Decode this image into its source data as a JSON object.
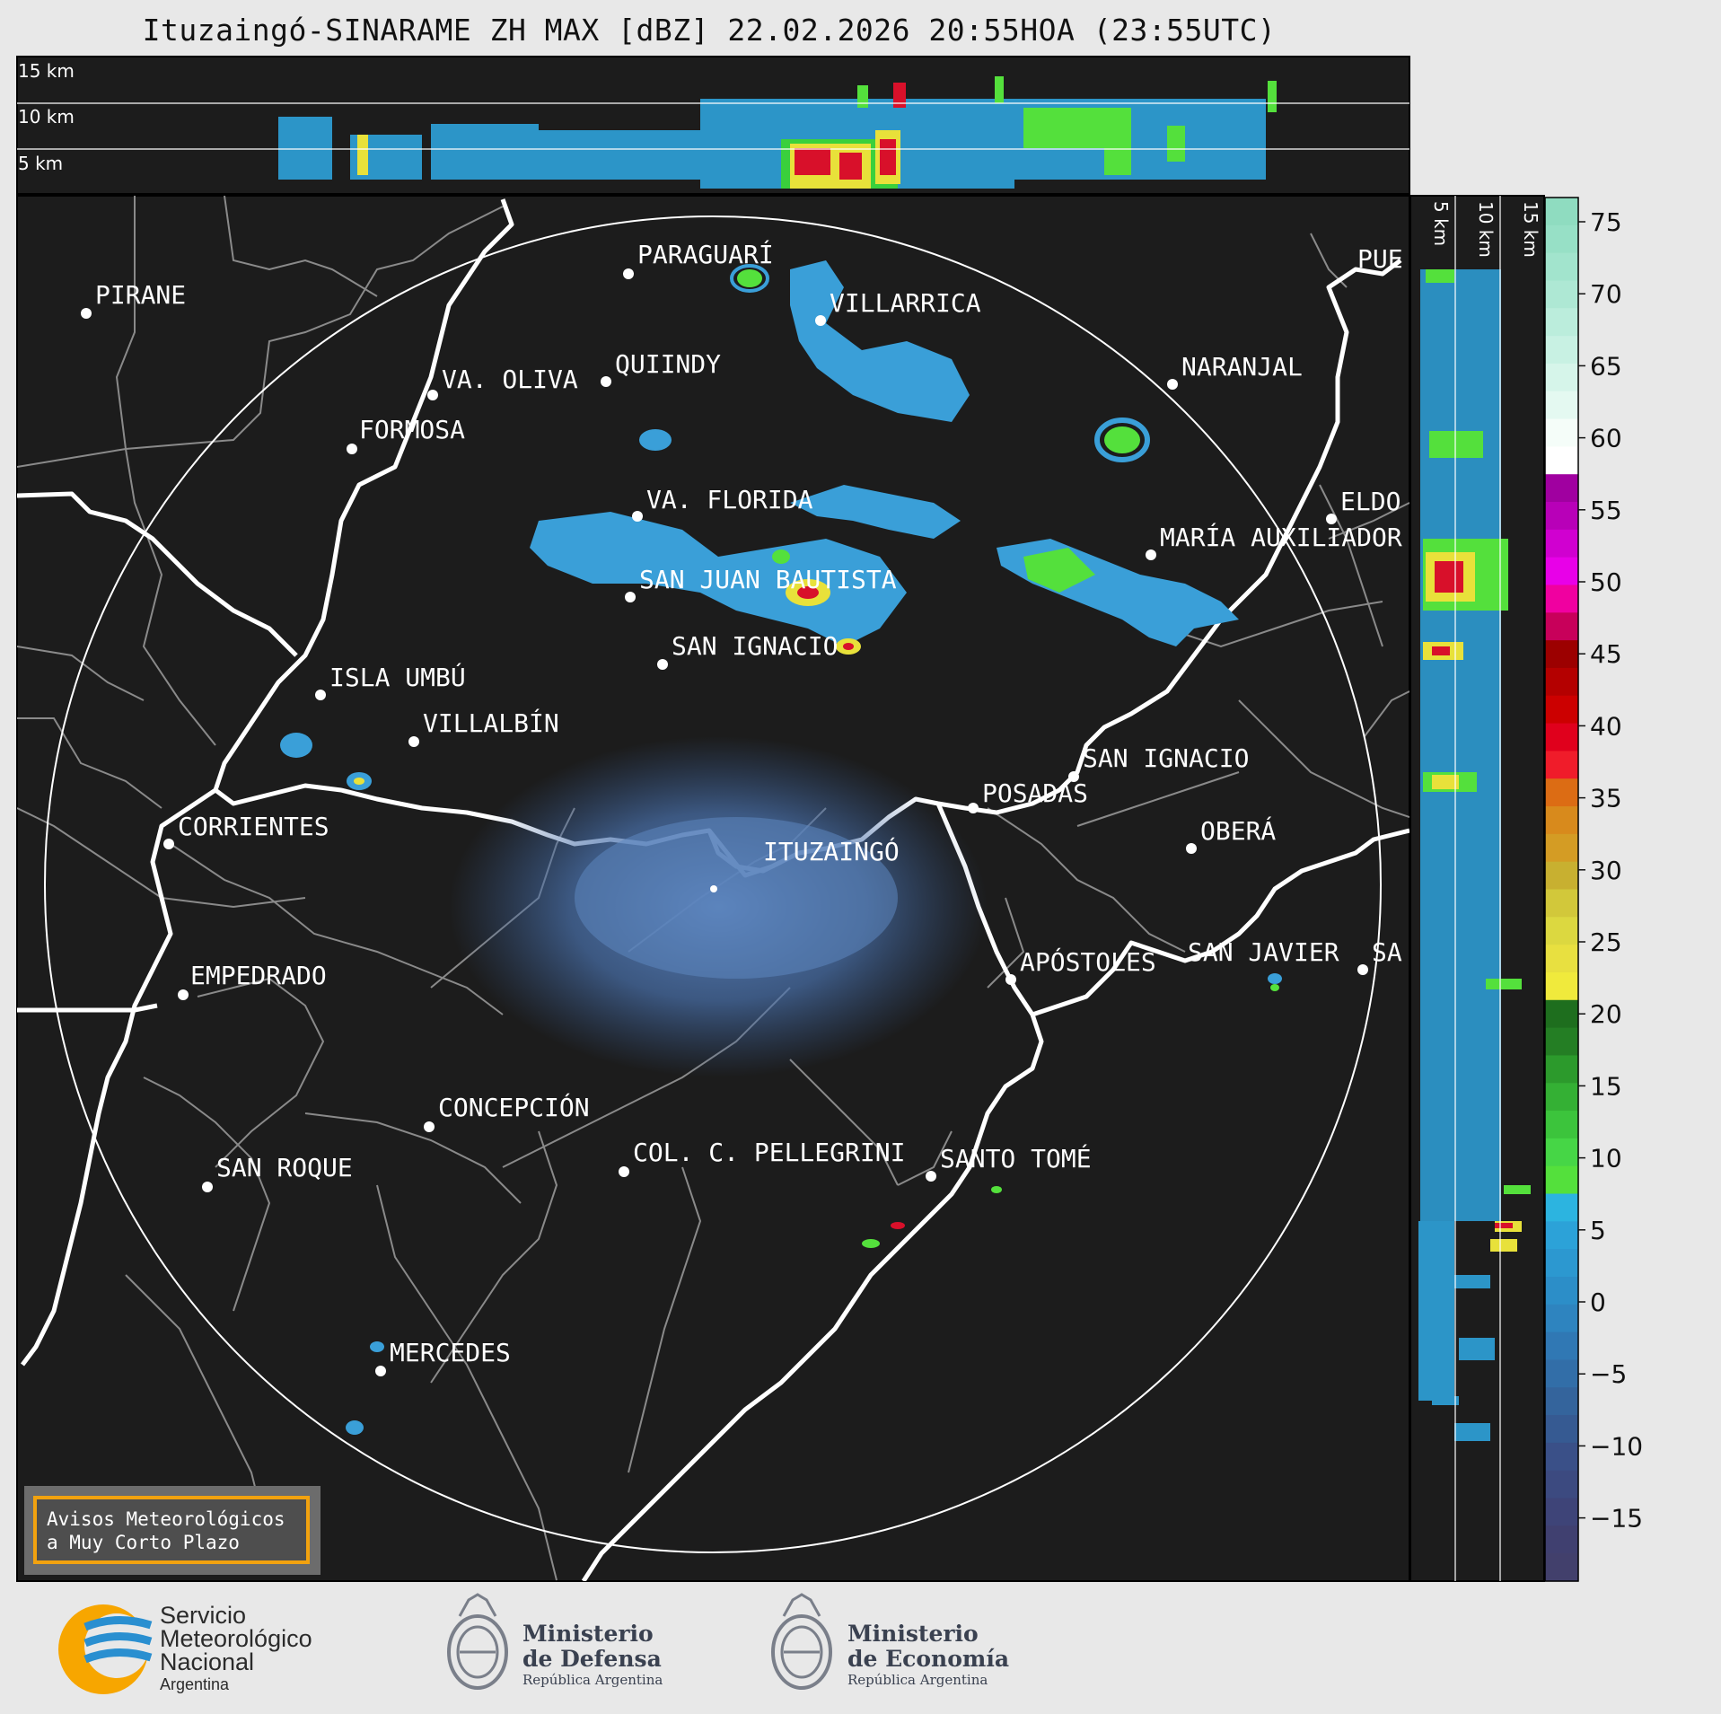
{
  "title": "Ituzaingó-SINARAME ZH MAX [dBZ] 22.02.2026 20:55HOA (23:55UTC)",
  "top_panel": {
    "levels": [
      "15 km",
      "10 km",
      "5 km"
    ]
  },
  "side_panel": {
    "levels": [
      "5 km",
      "10 km",
      "15 km"
    ]
  },
  "colorbar": {
    "ticks": [
      "75",
      "70",
      "65",
      "60",
      "55",
      "50",
      "45",
      "40",
      "35",
      "30",
      "25",
      "20",
      "15",
      "10",
      "5",
      "0",
      "−5",
      "−10",
      "−15"
    ]
  },
  "cities": [
    {
      "name": "PARAGUARÍ"
    },
    {
      "name": "VILLARRICA"
    },
    {
      "name": "PIRANE"
    },
    {
      "name": "QUIINDY"
    },
    {
      "name": "VA. OLIVA"
    },
    {
      "name": "FORMOSA"
    },
    {
      "name": "NARANJAL"
    },
    {
      "name": "PUE"
    },
    {
      "name": "VA. FLORIDA"
    },
    {
      "name": "ELDO"
    },
    {
      "name": "MARÍA AUXILIADOR"
    },
    {
      "name": "SAN JUAN BAUTISTA"
    },
    {
      "name": "SAN IGNACIO"
    },
    {
      "name": "ISLA UMBÚ"
    },
    {
      "name": "VILLALBÍN"
    },
    {
      "name": "SAN IGNACIO"
    },
    {
      "name": "POSADAS"
    },
    {
      "name": "CORRIENTES"
    },
    {
      "name": "OBERÁ"
    },
    {
      "name": "ITUZAINGÓ"
    },
    {
      "name": "APÓSTOLES"
    },
    {
      "name": "SAN JAVIER"
    },
    {
      "name": "SA"
    },
    {
      "name": "EMPEDRADO"
    },
    {
      "name": "CONCEPCIÓN"
    },
    {
      "name": "COL. C. PELLEGRINI"
    },
    {
      "name": "SANTO TOMÉ"
    },
    {
      "name": "SAN ROQUE"
    },
    {
      "name": "MERCEDES"
    }
  ],
  "warning_box": {
    "line1": "Avisos Meteorológicos",
    "line2": "a Muy Corto Plazo"
  },
  "logos": {
    "smn": {
      "line1": "Servicio",
      "line2": "Meteorológico",
      "line3": "Nacional",
      "line4": "Argentina"
    },
    "defensa": {
      "line1": "Ministerio",
      "line2": "de Defensa",
      "line3": "República Argentina"
    },
    "economia": {
      "line1": "Ministerio",
      "line2": "de Economía",
      "line3": "República Argentina"
    }
  },
  "colors": {
    "map_bg": "#1c1c1c",
    "rivers": "#ffffff",
    "borders": "#8a8a8a",
    "warning_border": "#f2a20f",
    "smn_orange": "#f7a600",
    "smn_blue": "#2a8fd0"
  }
}
